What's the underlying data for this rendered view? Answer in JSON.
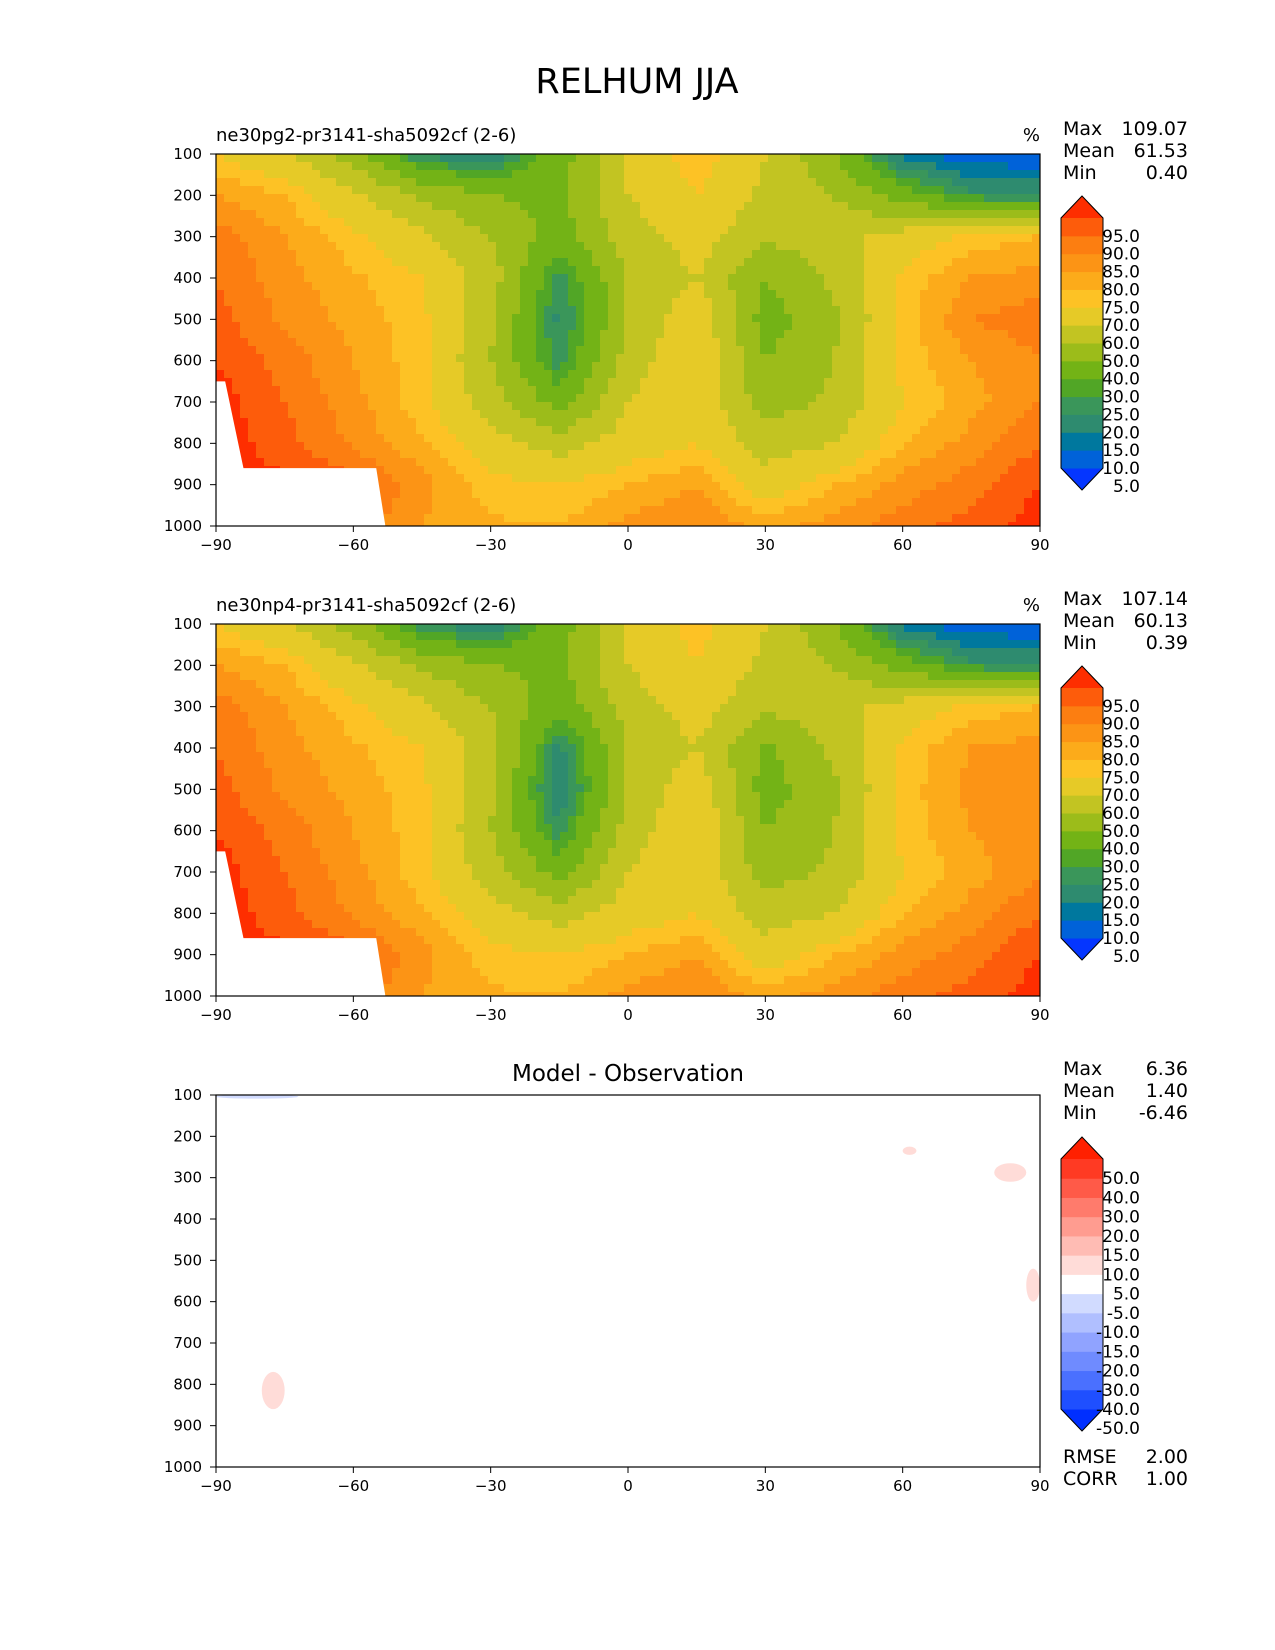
{
  "figure_title": "RELHUM JJA",
  "colors": {
    "seq_bar": [
      "#0536ff",
      "#0062d9",
      "#00789e",
      "#2e8b6f",
      "#3a965a",
      "#51a626",
      "#73b316",
      "#9cbc1a",
      "#c2c422",
      "#e6ca27",
      "#fdc225",
      "#fcab1a",
      "#fc9415",
      "#fc7e11",
      "#fd5c0b",
      "#fe2e00"
    ],
    "div_bar": [
      "#002fff",
      "#1f4fff",
      "#4a70ff",
      "#6f8bff",
      "#90a3ff",
      "#b0bfff",
      "#d1dbff",
      "#ffffff",
      "#ffdcd8",
      "#ffbcb4",
      "#ff9c90",
      "#ff7b6c",
      "#ff5a48",
      "#ff3a23",
      "#ff2000"
    ]
  },
  "panels": [
    {
      "id": "test",
      "title": "ne30pg2-pr3141-sha5092cf (2-6)",
      "units": "%",
      "stats": [
        {
          "label": "Max",
          "value": "109.07"
        },
        {
          "label": "Mean",
          "value": "61.53"
        },
        {
          "label": "Min",
          "value": "0.40"
        }
      ],
      "colorbar_levels": [
        "95.0",
        "90.0",
        "85.0",
        "80.0",
        "75.0",
        "70.0",
        "60.0",
        "50.0",
        "40.0",
        "30.0",
        "25.0",
        "20.0",
        "15.0",
        "10.0",
        "5.0"
      ]
    },
    {
      "id": "reference",
      "title": "ne30np4-pr3141-sha5092cf (2-6)",
      "units": "%",
      "stats": [
        {
          "label": "Max",
          "value": "107.14"
        },
        {
          "label": "Mean",
          "value": "60.13"
        },
        {
          "label": "Min",
          "value": "0.39"
        }
      ],
      "colorbar_levels": [
        "95.0",
        "90.0",
        "85.0",
        "80.0",
        "75.0",
        "70.0",
        "60.0",
        "50.0",
        "40.0",
        "30.0",
        "25.0",
        "20.0",
        "15.0",
        "10.0",
        "5.0"
      ]
    },
    {
      "id": "diff",
      "title": "Model - Observation",
      "units": "",
      "stats": [
        {
          "label": "Max",
          "value": "6.36"
        },
        {
          "label": "Mean",
          "value": "1.40"
        },
        {
          "label": "Min",
          "value": "-6.46"
        }
      ],
      "colorbar_levels": [
        "50.0",
        "40.0",
        "30.0",
        "20.0",
        "15.0",
        "10.0",
        "5.0",
        "-5.0",
        "-10.0",
        "-15.0",
        "-20.0",
        "-30.0",
        "-40.0",
        "-50.0"
      ],
      "metrics": [
        {
          "label": "RMSE",
          "value": "2.00"
        },
        {
          "label": "CORR",
          "value": "1.00"
        }
      ]
    }
  ],
  "chart_data": [
    {
      "type": "heatmap",
      "title": "ne30pg2-pr3141-sha5092cf (2-6)",
      "xlabel": "",
      "ylabel": "",
      "xlim": [
        -90,
        90
      ],
      "ylim": [
        1000,
        100
      ],
      "x_ticks": [
        -90,
        -60,
        -30,
        0,
        30,
        60,
        90
      ],
      "x_tick_labels": [
        "−90",
        "−60",
        "−30",
        "0",
        "30",
        "60",
        "90"
      ],
      "y_ticks": [
        100,
        200,
        300,
        400,
        500,
        600,
        700,
        800,
        900,
        1000
      ],
      "y_tick_labels": [
        "100",
        "200",
        "300",
        "400",
        "500",
        "600",
        "700",
        "800",
        "900",
        "1000"
      ],
      "grid": false,
      "x": [
        -90,
        -75,
        -60,
        -45,
        -30,
        -15,
        0,
        15,
        30,
        45,
        60,
        75,
        90
      ],
      "y": [
        100,
        200,
        300,
        400,
        500,
        600,
        700,
        800,
        900,
        1000
      ],
      "z": [
        [
          70,
          62,
          45,
          18,
          15,
          35,
          60,
          75,
          60,
          40,
          12,
          6,
          5
        ],
        [
          80,
          75,
          62,
          48,
          40,
          38,
          60,
          70,
          58,
          50,
          35,
          22,
          20
        ],
        [
          88,
          80,
          72,
          62,
          50,
          35,
          55,
          65,
          52,
          55,
          65,
          72,
          75
        ],
        [
          90,
          82,
          76,
          70,
          55,
          22,
          50,
          60,
          40,
          52,
          72,
          80,
          82
        ],
        [
          92,
          84,
          78,
          72,
          52,
          18,
          50,
          68,
          35,
          48,
          72,
          85,
          88
        ],
        [
          95,
          88,
          80,
          72,
          50,
          22,
          55,
          70,
          40,
          50,
          72,
          80,
          85
        ],
        [
          98,
          90,
          82,
          72,
          55,
          35,
          60,
          68,
          45,
          52,
          70,
          78,
          85
        ],
        [
          98,
          92,
          84,
          76,
          65,
          55,
          65,
          70,
          55,
          60,
          75,
          82,
          90
        ],
        [
          99,
          96,
          92,
          82,
          72,
          70,
          75,
          80,
          65,
          75,
          82,
          88,
          95
        ],
        [
          99,
          96,
          88,
          80,
          76,
          75,
          82,
          85,
          78,
          82,
          88,
          92,
          98
        ]
      ],
      "masked_region": [
        [
          -90,
          650
        ],
        [
          -88,
          650
        ],
        [
          -84,
          860
        ],
        [
          -55,
          860
        ],
        [
          -53,
          1000
        ],
        [
          -90,
          1000
        ]
      ]
    },
    {
      "type": "heatmap",
      "title": "ne30np4-pr3141-sha5092cf (2-6)",
      "xlabel": "",
      "ylabel": "",
      "xlim": [
        -90,
        90
      ],
      "ylim": [
        1000,
        100
      ],
      "x_ticks": [
        -90,
        -60,
        -30,
        0,
        30,
        60,
        90
      ],
      "x_tick_labels": [
        "−90",
        "−60",
        "−30",
        "0",
        "30",
        "60",
        "90"
      ],
      "y_ticks": [
        100,
        200,
        300,
        400,
        500,
        600,
        700,
        800,
        900,
        1000
      ],
      "y_tick_labels": [
        "100",
        "200",
        "300",
        "400",
        "500",
        "600",
        "700",
        "800",
        "900",
        "1000"
      ],
      "grid": false,
      "x": [
        -90,
        -75,
        -60,
        -45,
        -30,
        -15,
        0,
        15,
        30,
        45,
        60,
        75,
        90
      ],
      "y": [
        100,
        200,
        300,
        400,
        500,
        600,
        700,
        800,
        900,
        1000
      ],
      "z": [
        [
          70,
          62,
          45,
          20,
          15,
          35,
          60,
          74,
          60,
          40,
          12,
          6,
          5
        ],
        [
          80,
          75,
          62,
          48,
          40,
          38,
          60,
          70,
          58,
          50,
          35,
          22,
          20
        ],
        [
          88,
          80,
          72,
          62,
          50,
          33,
          55,
          65,
          52,
          55,
          65,
          72,
          75
        ],
        [
          90,
          82,
          76,
          70,
          55,
          18,
          50,
          60,
          38,
          52,
          72,
          80,
          82
        ],
        [
          92,
          84,
          78,
          72,
          52,
          14,
          50,
          68,
          35,
          48,
          72,
          82,
          85
        ],
        [
          95,
          88,
          80,
          72,
          50,
          22,
          55,
          70,
          40,
          50,
          72,
          80,
          84
        ],
        [
          98,
          90,
          82,
          72,
          55,
          35,
          60,
          68,
          45,
          52,
          70,
          78,
          84
        ],
        [
          98,
          92,
          84,
          76,
          65,
          55,
          65,
          70,
          55,
          60,
          75,
          82,
          90
        ],
        [
          99,
          96,
          92,
          82,
          72,
          70,
          75,
          80,
          65,
          75,
          82,
          88,
          95
        ],
        [
          99,
          96,
          88,
          80,
          76,
          75,
          82,
          85,
          78,
          82,
          88,
          92,
          98
        ]
      ],
      "masked_region": [
        [
          -90,
          650
        ],
        [
          -88,
          650
        ],
        [
          -84,
          860
        ],
        [
          -55,
          860
        ],
        [
          -53,
          1000
        ],
        [
          -90,
          1000
        ]
      ]
    },
    {
      "type": "heatmap",
      "title": "Model - Observation",
      "xlabel": "",
      "ylabel": "",
      "xlim": [
        -90,
        90
      ],
      "ylim": [
        1000,
        100
      ],
      "x_ticks": [
        -90,
        -60,
        -30,
        0,
        30,
        60,
        90
      ],
      "x_tick_labels": [
        "−90",
        "−60",
        "−30",
        "0",
        "30",
        "60",
        "90"
      ],
      "y_ticks": [
        100,
        200,
        300,
        400,
        500,
        600,
        700,
        800,
        900,
        1000
      ],
      "y_tick_labels": [
        "100",
        "200",
        "300",
        "400",
        "500",
        "600",
        "700",
        "800",
        "900",
        "1000"
      ],
      "grid": false,
      "features": [
        {
          "kind": "negative",
          "level": "-5 to -10",
          "lon_range": [
            -90,
            -72
          ],
          "p_range": [
            100,
            108
          ]
        },
        {
          "kind": "positive",
          "level": "5 to 10",
          "lon_range": [
            60,
            63
          ],
          "p_range": [
            225,
            245
          ]
        },
        {
          "kind": "positive",
          "level": "5 to 10",
          "lon_range": [
            80,
            87
          ],
          "p_range": [
            265,
            310
          ]
        },
        {
          "kind": "positive",
          "level": "5 to 10",
          "lon_range": [
            87,
            90
          ],
          "p_range": [
            520,
            600
          ]
        },
        {
          "kind": "positive",
          "level": "5 to 10",
          "lon_range": [
            -80,
            -75
          ],
          "p_range": [
            770,
            860
          ]
        }
      ]
    }
  ]
}
